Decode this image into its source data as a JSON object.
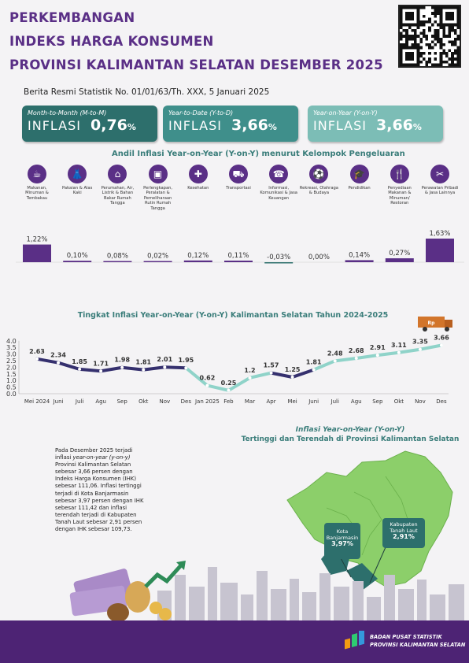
{
  "title": {
    "line1": "PERKEMBANGAN",
    "line2": "INDEKS HARGA KONSUMEN",
    "line3": "PROVINSI KALIMANTAN SELATAN DESEMBER 2025"
  },
  "berita": "Berita Resmi Statistik No. 01/01/63/Th. XXX, 5 Januari 2025",
  "cards": [
    {
      "sub": "Month-to-Month (M-to-M)",
      "label": "INFLASI",
      "value": "0,76",
      "pct": "%",
      "color": "#2d6f6c"
    },
    {
      "sub": "Year-to-Date (Y-to-D)",
      "label": "INFLASI",
      "value": "3,66",
      "pct": "%",
      "color": "#3f8f8b"
    },
    {
      "sub": "Year-on-Year (Y-on-Y)",
      "label": "INFLASI",
      "value": "3,66",
      "pct": "%",
      "color": "#7cbdb6"
    }
  ],
  "andil_title": "Andil Inflasi Year-on-Year (Y-on-Y) menurut Kelompok Pengeluaran",
  "categories": [
    {
      "name": "Makanan, Minuman & Tembakau",
      "icon": "food-icon",
      "glyph": "☕"
    },
    {
      "name": "Pakaian & Alas Kaki",
      "icon": "dress-icon",
      "glyph": "👗"
    },
    {
      "name": "Perumahan, Air, Listrik & Bahan Bakar Rumah Tangga",
      "icon": "house-icon",
      "glyph": "⌂"
    },
    {
      "name": "Perlengkapan, Peralatan & Pemeliharaan Rutin Rumah Tangga",
      "icon": "appliance-icon",
      "glyph": "▣"
    },
    {
      "name": "Kesehatan",
      "icon": "health-icon",
      "glyph": "✚"
    },
    {
      "name": "Transportasi",
      "icon": "car-icon",
      "glyph": "⛟"
    },
    {
      "name": "Informasi, Komunikasi & Jasa Keuangan",
      "icon": "phone-icon",
      "glyph": "☎"
    },
    {
      "name": "Rekreasi, Olahraga & Budaya",
      "icon": "recreation-icon",
      "glyph": "⚽"
    },
    {
      "name": "Pendidikan",
      "icon": "graduation-icon",
      "glyph": "🎓"
    },
    {
      "name": "Penyediaan Makanan & Minuman/ Restoran",
      "icon": "restaurant-icon",
      "glyph": "🍴"
    },
    {
      "name": "Perawatan Pribadi & Jasa Lainnya",
      "icon": "care-icon",
      "glyph": "✂"
    }
  ],
  "chart_data": [
    {
      "type": "bar",
      "title": "Andil Inflasi Year-on-Year (Y-on-Y) menurut Kelompok Pengeluaran",
      "categories": [
        "Makanan, Minuman & Tembakau",
        "Pakaian & Alas Kaki",
        "Perumahan, Air, Listrik & Bahan Bakar Rumah Tangga",
        "Perlengkapan, Peralatan & Pemeliharaan Rutin Rumah Tangga",
        "Kesehatan",
        "Transportasi",
        "Informasi, Komunikasi & Jasa Keuangan",
        "Rekreasi, Olahraga & Budaya",
        "Pendidikan",
        "Penyediaan Makanan & Minuman/ Restoran",
        "Perawatan Pribadi & Jasa Lainnya"
      ],
      "values": [
        1.22,
        0.1,
        0.08,
        0.02,
        0.12,
        0.11,
        -0.03,
        0.0,
        0.14,
        0.27,
        1.63
      ],
      "labels": [
        "1,22%",
        "0,10%",
        "0,08%",
        "0,02%",
        "0,12%",
        "0,11%",
        "-0,03%",
        "0,00%",
        "0,14%",
        "0,27%",
        "1,63%"
      ],
      "colors": {
        "positive": "#5a2f86",
        "negative": "#2d6f6c",
        "highlight": "#6b3a9a"
      }
    },
    {
      "type": "line",
      "title": "Tingkat Inflasi Year-on-Year (Y-on-Y) Kalimantan Selatan Tahun 2024-2025",
      "x": [
        "Mei 2024",
        "Juni",
        "Juli",
        "Agu",
        "Sep",
        "Okt",
        "Nov",
        "Des",
        "Jan 2025",
        "Feb",
        "Mar",
        "Apr",
        "Mei",
        "Juni",
        "Juli",
        "Agu",
        "Sep",
        "Okt",
        "Nov",
        "Des"
      ],
      "values": [
        2.63,
        2.34,
        1.85,
        1.71,
        1.98,
        1.81,
        2.01,
        1.95,
        0.62,
        0.25,
        1.2,
        1.57,
        1.25,
        1.81,
        2.48,
        2.68,
        2.91,
        3.11,
        3.35,
        3.66
      ],
      "value_labels": [
        "2.63",
        "2.34",
        "1.85",
        "1.71",
        "1.98",
        "1.81",
        "2.01",
        "1.95",
        "0.62",
        "0.25",
        "1.2",
        "1.57",
        "1.25",
        "1.81",
        "2.48",
        "2.68",
        "2.91",
        "3.11",
        "3.35",
        "3.66"
      ],
      "yticks": [
        "4.0",
        "3.5",
        "3.0",
        "2.5",
        "2.0",
        "1.5",
        "1.0",
        "0.5",
        "0.0"
      ],
      "ylim": [
        0,
        4
      ],
      "colors": {
        "dark": "#35306e",
        "light": "#8fd3c9"
      }
    }
  ],
  "summary": {
    "t1": "Pada Desember 2025 terjadi inflasi ",
    "t2": "year-on-year (y-on-y)",
    "t3": " Provinsi Kalimantan Selatan sebesar 3,66 persen dengan Indeks Harga Konsumen (IHK) sebesar 111,06. Inflasi tertinggi terjadi di Kota Banjarmasin sebesar 3,97 persen dengan IHK sebesar 111,42 dan inflasi terendah terjadi di Kabupaten Tanah Laut sebesar 2,91 persen dengan IHK sebesar 109,73."
  },
  "map": {
    "title1": "Inflasi Year-on-Year (Y-on-Y)",
    "title2": "Tertinggi dan Terendah di Provinsi Kalimantan Selatan",
    "high_name": "Kota Banjarmasin",
    "high_value": "3,97%",
    "low_name": "Kabupaten Tanah Laut",
    "low_value": "2,91%"
  },
  "footer": {
    "org1": "BADAN PUSAT STATISTIK",
    "org2": "PROVINSI KALIMANTAN SELATAN"
  }
}
